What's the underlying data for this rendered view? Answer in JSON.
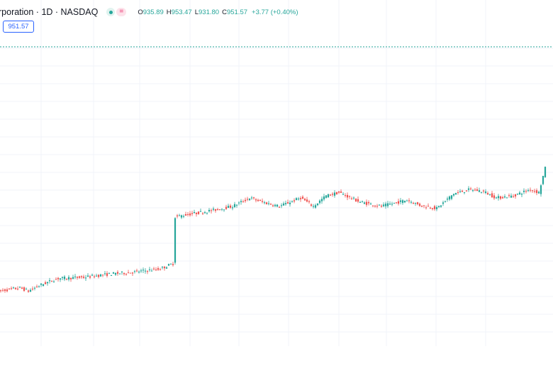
{
  "header": {
    "symbol_title": "rporation · 1D · NASDAQ",
    "ohlc": {
      "o_label": "O",
      "o_value": "935.89",
      "h_label": "H",
      "h_value": "953.47",
      "l_label": "L",
      "l_value": "931.80",
      "c_label": "C",
      "c_value": "951.57",
      "change": "+3.77 (+0.40%)"
    },
    "status_icons": [
      "market-open-dot-icon",
      "equal-sign-icon"
    ]
  },
  "price_input": {
    "value": "951.57"
  },
  "colors": {
    "up": "#26a69a",
    "down": "#ef5350",
    "grid": "#f0f3fa",
    "accent": "#2962ff",
    "last_price_line": "#26a69a"
  },
  "chart_data": {
    "type": "candlestick",
    "ylim": [
      700,
      1000
    ],
    "grid": true,
    "last_price": 951.57,
    "anchors": [
      [
        0,
        752
      ],
      [
        10,
        755
      ],
      [
        14,
        752
      ],
      [
        20,
        758
      ],
      [
        28,
        764
      ],
      [
        40,
        765
      ],
      [
        52,
        768
      ],
      [
        64,
        770
      ],
      [
        76,
        773
      ],
      [
        82,
        778
      ],
      [
        83,
        822
      ],
      [
        88,
        824
      ],
      [
        94,
        826
      ],
      [
        100,
        828
      ],
      [
        110,
        832
      ],
      [
        118,
        840
      ],
      [
        124,
        836
      ],
      [
        132,
        832
      ],
      [
        142,
        840
      ],
      [
        148,
        832
      ],
      [
        154,
        842
      ],
      [
        160,
        845
      ],
      [
        170,
        836
      ],
      [
        180,
        832
      ],
      [
        192,
        838
      ],
      [
        198,
        833
      ],
      [
        206,
        830
      ],
      [
        214,
        844
      ],
      [
        222,
        848
      ],
      [
        228,
        846
      ],
      [
        234,
        840
      ],
      [
        242,
        842
      ],
      [
        250,
        848
      ],
      [
        254,
        845
      ],
      [
        257,
        868
      ]
    ]
  }
}
